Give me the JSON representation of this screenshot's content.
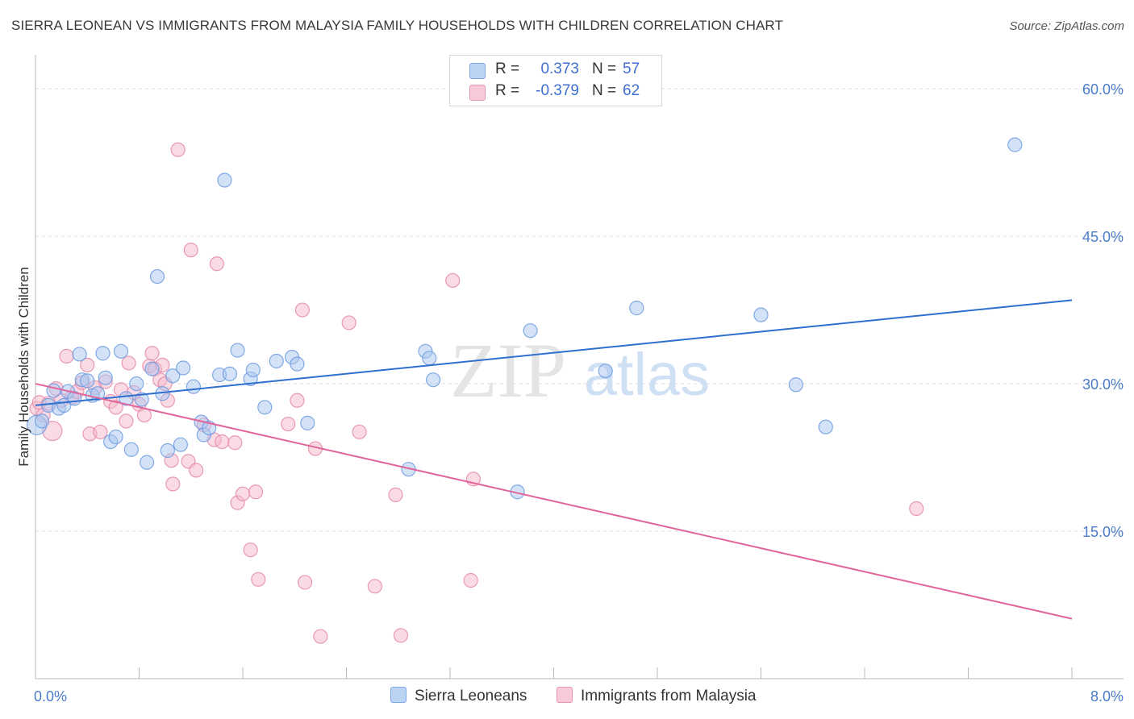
{
  "title": "SIERRA LEONEAN VS IMMIGRANTS FROM MALAYSIA FAMILY HOUSEHOLDS WITH CHILDREN CORRELATION CHART",
  "source": "Source: ZipAtlas.com",
  "watermark": {
    "zip": "ZIP",
    "atlas": "atlas"
  },
  "legend": {
    "rows": [
      {
        "r_label": "R =",
        "r_value": "0.373",
        "n_label": "N =",
        "n_value": "57"
      },
      {
        "r_label": "R =",
        "r_value": "-0.379",
        "n_label": "N =",
        "n_value": "62"
      }
    ]
  },
  "colors": {
    "blue_fill": "#a9c6ef",
    "blue_stroke": "#6d9be0",
    "blue_line": "#2f6fcf",
    "pink_fill": "#f5b7ca",
    "pink_stroke": "#e48aa8",
    "pink_line": "#e0659a",
    "grid": "#dddddd",
    "axis": "#bbbbbb",
    "tick_label": "#4a7cc9"
  },
  "chart_data": {
    "type": "scatter",
    "title": "SIERRA LEONEAN VS IMMIGRANTS FROM MALAYSIA FAMILY HOUSEHOLDS WITH CHILDREN CORRELATION CHART",
    "xlabel": "",
    "ylabel": "Family Households with Children",
    "xlim": [
      0,
      8
    ],
    "ylim": [
      0,
      60
    ],
    "x_tick_labels": [
      {
        "value": 0,
        "label": "0.0%"
      },
      {
        "value": 8,
        "label": "8.0%"
      }
    ],
    "y_tick_labels": [
      {
        "value": 15,
        "label": "15.0%"
      },
      {
        "value": 30,
        "label": "30.0%"
      },
      {
        "value": 45,
        "label": "45.0%"
      },
      {
        "value": 60,
        "label": "60.0%"
      }
    ],
    "grid": true,
    "legend_position": "top-center",
    "series": [
      {
        "name": "Sierra Leoneans",
        "color": "#a9c6ef",
        "trend": {
          "x": [
            0,
            8
          ],
          "y": [
            27.8,
            38.5
          ]
        },
        "points": [
          [
            0.01,
            25.8
          ],
          [
            0.05,
            26.2
          ],
          [
            0.1,
            27.8
          ],
          [
            0.14,
            29.3
          ],
          [
            0.18,
            27.5
          ],
          [
            0.22,
            27.8
          ],
          [
            0.25,
            29.2
          ],
          [
            0.3,
            28.5
          ],
          [
            0.34,
            33.0
          ],
          [
            0.36,
            30.4
          ],
          [
            0.4,
            30.3
          ],
          [
            0.44,
            28.8
          ],
          [
            0.48,
            29.0
          ],
          [
            0.52,
            33.1
          ],
          [
            0.54,
            30.6
          ],
          [
            0.58,
            24.1
          ],
          [
            0.62,
            24.6
          ],
          [
            0.66,
            33.3
          ],
          [
            0.7,
            28.5
          ],
          [
            0.74,
            23.3
          ],
          [
            0.78,
            30.0
          ],
          [
            0.82,
            28.4
          ],
          [
            0.86,
            22.0
          ],
          [
            0.9,
            31.5
          ],
          [
            0.94,
            40.9
          ],
          [
            0.98,
            29.0
          ],
          [
            1.02,
            23.2
          ],
          [
            1.06,
            30.8
          ],
          [
            1.12,
            23.8
          ],
          [
            1.14,
            31.6
          ],
          [
            1.22,
            29.7
          ],
          [
            1.28,
            26.1
          ],
          [
            1.3,
            24.8
          ],
          [
            1.34,
            25.5
          ],
          [
            1.42,
            30.9
          ],
          [
            1.46,
            50.7
          ],
          [
            1.5,
            31.0
          ],
          [
            1.56,
            33.4
          ],
          [
            1.66,
            30.5
          ],
          [
            1.68,
            31.4
          ],
          [
            1.77,
            27.6
          ],
          [
            1.86,
            32.3
          ],
          [
            1.98,
            32.7
          ],
          [
            2.02,
            32.0
          ],
          [
            2.1,
            26.0
          ],
          [
            2.88,
            21.3
          ],
          [
            3.01,
            33.3
          ],
          [
            3.04,
            32.6
          ],
          [
            3.07,
            30.4
          ],
          [
            3.72,
            19.0
          ],
          [
            3.82,
            35.4
          ],
          [
            4.4,
            31.3
          ],
          [
            4.64,
            37.7
          ],
          [
            5.6,
            37.0
          ],
          [
            5.87,
            29.9
          ],
          [
            6.1,
            25.6
          ],
          [
            7.56,
            54.3
          ]
        ]
      },
      {
        "name": "Immigrants from Malaysia",
        "color": "#f5b7ca",
        "trend": {
          "x": [
            0,
            8
          ],
          "y": [
            30.0,
            6.1
          ]
        },
        "points": [
          [
            0.01,
            27.5
          ],
          [
            0.03,
            28.1
          ],
          [
            0.06,
            26.8
          ],
          [
            0.1,
            28.0
          ],
          [
            0.13,
            25.2
          ],
          [
            0.16,
            29.5
          ],
          [
            0.2,
            28.3
          ],
          [
            0.24,
            32.8
          ],
          [
            0.28,
            28.6
          ],
          [
            0.32,
            29.2
          ],
          [
            0.36,
            30.1
          ],
          [
            0.4,
            31.9
          ],
          [
            0.42,
            24.9
          ],
          [
            0.46,
            29.6
          ],
          [
            0.5,
            25.1
          ],
          [
            0.54,
            30.2
          ],
          [
            0.58,
            28.2
          ],
          [
            0.62,
            27.6
          ],
          [
            0.66,
            29.4
          ],
          [
            0.7,
            26.2
          ],
          [
            0.72,
            32.1
          ],
          [
            0.76,
            29.1
          ],
          [
            0.8,
            27.9
          ],
          [
            0.84,
            26.8
          ],
          [
            0.88,
            31.8
          ],
          [
            0.9,
            33.1
          ],
          [
            0.92,
            31.5
          ],
          [
            0.96,
            30.4
          ],
          [
            0.98,
            31.9
          ],
          [
            1.0,
            30.0
          ],
          [
            1.02,
            28.3
          ],
          [
            1.05,
            22.2
          ],
          [
            1.06,
            19.8
          ],
          [
            1.1,
            53.8
          ],
          [
            1.18,
            22.1
          ],
          [
            1.2,
            43.6
          ],
          [
            1.24,
            21.2
          ],
          [
            1.3,
            25.8
          ],
          [
            1.38,
            24.3
          ],
          [
            1.4,
            42.2
          ],
          [
            1.44,
            24.1
          ],
          [
            1.54,
            24.0
          ],
          [
            1.56,
            17.9
          ],
          [
            1.6,
            18.8
          ],
          [
            1.66,
            13.1
          ],
          [
            1.7,
            19.0
          ],
          [
            1.72,
            10.1
          ],
          [
            1.95,
            25.9
          ],
          [
            2.02,
            28.3
          ],
          [
            2.06,
            37.5
          ],
          [
            2.08,
            9.8
          ],
          [
            2.16,
            23.4
          ],
          [
            2.2,
            4.3
          ],
          [
            2.42,
            36.2
          ],
          [
            2.5,
            25.1
          ],
          [
            2.62,
            9.4
          ],
          [
            2.78,
            18.7
          ],
          [
            2.82,
            4.4
          ],
          [
            3.22,
            40.5
          ],
          [
            3.36,
            10.0
          ],
          [
            3.38,
            20.3
          ],
          [
            6.8,
            17.3
          ]
        ]
      }
    ]
  }
}
